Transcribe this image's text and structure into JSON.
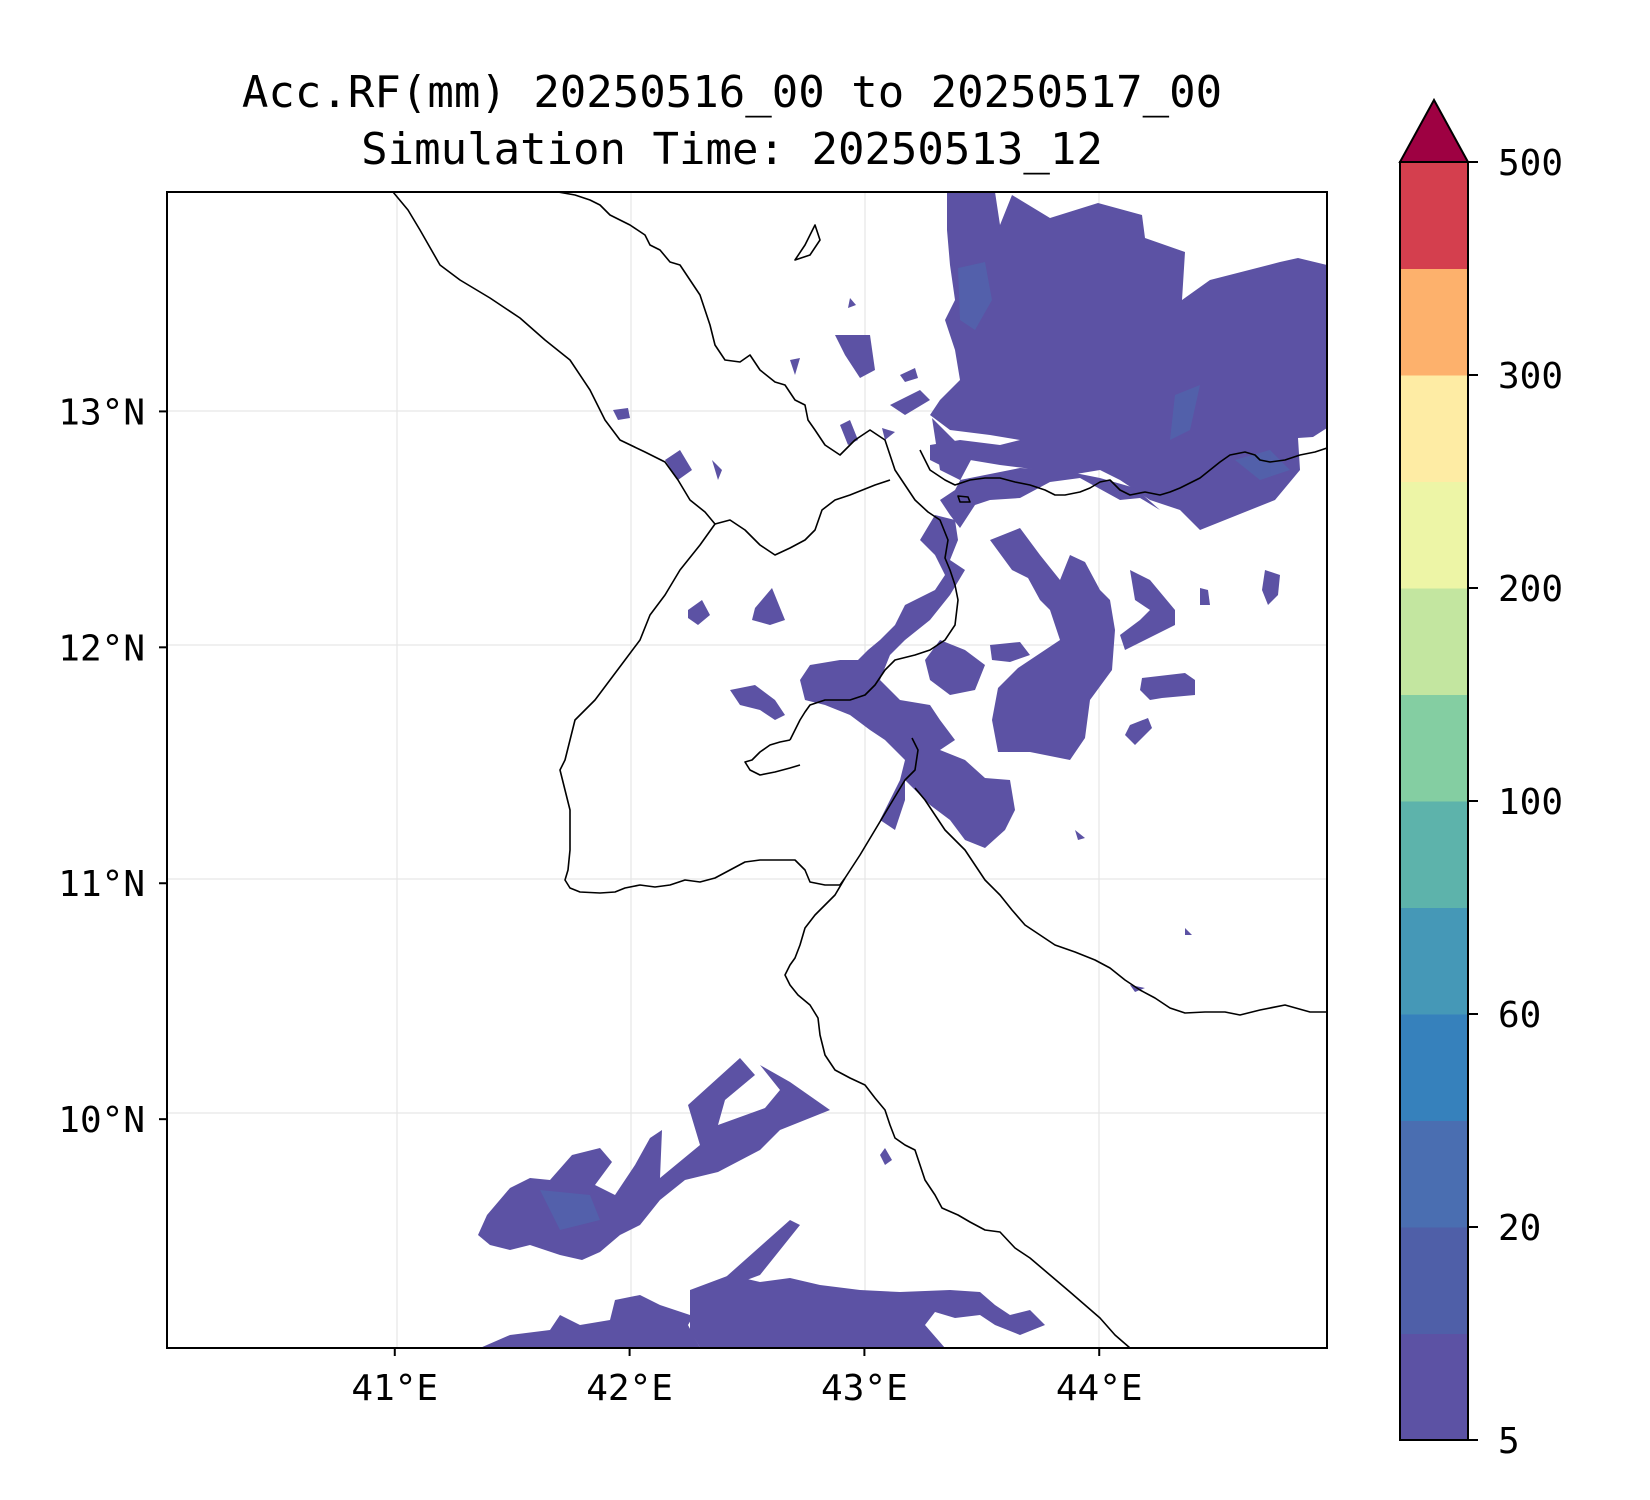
{
  "title": {
    "line1": "Acc.RF(mm) 20250516_00 to 20250517_00",
    "line2": "Simulation Time: 20250513_12"
  },
  "map": {
    "lon_range": [
      40.03,
      44.97
    ],
    "lat_range": [
      9.03,
      13.93
    ],
    "x_ticks": [
      {
        "value": 41,
        "label": "41°E"
      },
      {
        "value": 42,
        "label": "42°E"
      },
      {
        "value": 43,
        "label": "43°E"
      },
      {
        "value": 44,
        "label": "44°E"
      }
    ],
    "y_ticks": [
      {
        "value": 13,
        "label": "13°N"
      },
      {
        "value": 12,
        "label": "12°N"
      },
      {
        "value": 11,
        "label": "11°N"
      },
      {
        "value": 10,
        "label": "10°N"
      }
    ],
    "grid": true,
    "fill_color": "#5c52a4",
    "coast_color": "#000000"
  },
  "colorbar": {
    "ticks": [
      {
        "value": 5,
        "label": "5"
      },
      {
        "value": 20,
        "label": "20"
      },
      {
        "value": 60,
        "label": "60"
      },
      {
        "value": 100,
        "label": "100"
      },
      {
        "value": 200,
        "label": "200"
      },
      {
        "value": 300,
        "label": "300"
      },
      {
        "value": 500,
        "label": "500"
      }
    ],
    "colors": [
      "#5c52a4",
      "#4f5fa8",
      "#4a6eb1",
      "#3681bc",
      "#4598b7",
      "#5db3ab",
      "#84cea2",
      "#c3e6a0",
      "#edf5a6",
      "#feeca4",
      "#fdb16c",
      "#d43f4e"
    ],
    "extend_color": "#9e0142",
    "extend": "max"
  }
}
